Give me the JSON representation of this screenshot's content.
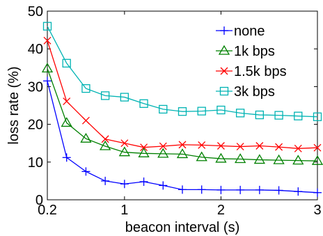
{
  "chart_data": {
    "type": "line",
    "title": "",
    "xlabel": "beacon interval (s)",
    "ylabel": "loss rate (%)",
    "xlim": [
      0.2,
      3
    ],
    "ylim": [
      0,
      50
    ],
    "x_ticks": [
      {
        "value": 0.2,
        "label": "0.2"
      },
      {
        "value": 1,
        "label": "1"
      },
      {
        "value": 2,
        "label": "2"
      },
      {
        "value": 3,
        "label": "3"
      }
    ],
    "y_ticks": [
      {
        "value": 0,
        "label": "0"
      },
      {
        "value": 10,
        "label": "10"
      },
      {
        "value": 20,
        "label": "20"
      },
      {
        "value": 30,
        "label": "30"
      },
      {
        "value": 40,
        "label": "40"
      },
      {
        "value": 50,
        "label": "50"
      }
    ],
    "grid": false,
    "legend_position": "top-right",
    "x": [
      0.2,
      0.4,
      0.6,
      0.8,
      1.0,
      1.2,
      1.4,
      1.6,
      1.8,
      2.0,
      2.2,
      2.4,
      2.6,
      2.8,
      3.0
    ],
    "series": [
      {
        "name": "none",
        "color": "#0000ff",
        "marker": "plus",
        "values": [
          31.5,
          11.2,
          7.5,
          5.0,
          4.2,
          4.8,
          3.8,
          2.7,
          2.7,
          2.6,
          2.6,
          2.6,
          2.5,
          2.2,
          1.9
        ]
      },
      {
        "name": "1k bps",
        "color": "#008000",
        "marker": "triangle",
        "values": [
          34.8,
          20.4,
          16.2,
          14.2,
          12.6,
          12.3,
          12.2,
          12.1,
          11.3,
          10.9,
          10.8,
          10.6,
          10.5,
          10.4,
          10.3
        ]
      },
      {
        "name": "1.5k bps",
        "color": "#ff0000",
        "marker": "x",
        "values": [
          42.2,
          26.1,
          21.0,
          16.1,
          15.0,
          13.9,
          14.2,
          14.6,
          14.5,
          14.3,
          14.1,
          14.3,
          14.0,
          13.6,
          13.8
        ]
      },
      {
        "name": "3k bps",
        "color": "#00b3b3",
        "marker": "square",
        "values": [
          46.0,
          36.2,
          29.5,
          27.6,
          27.2,
          25.5,
          24.0,
          23.4,
          23.5,
          23.8,
          23.0,
          22.5,
          22.4,
          22.2,
          22.0
        ]
      }
    ]
  }
}
